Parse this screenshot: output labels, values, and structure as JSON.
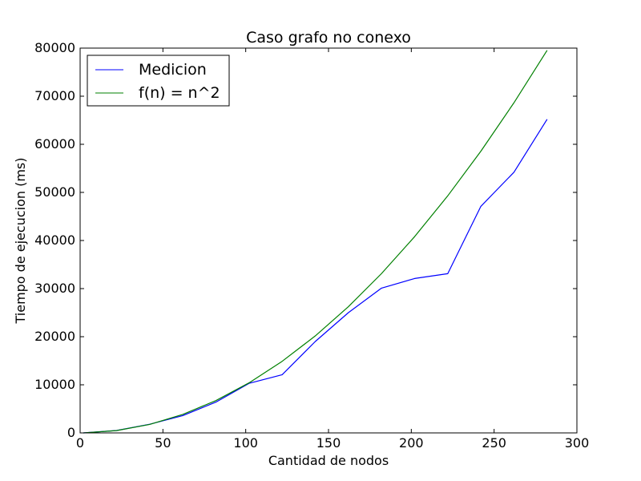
{
  "chart_data": {
    "type": "line",
    "title": "Caso grafo no conexo",
    "xlabel": "Cantidad de nodos",
    "ylabel": "Tiempo de ejecucion (ms)",
    "xlim": [
      0,
      300
    ],
    "ylim": [
      0,
      80000
    ],
    "xticks": [
      "0",
      "50",
      "100",
      "150",
      "200",
      "250",
      "300"
    ],
    "yticks": [
      "0",
      "10000",
      "20000",
      "30000",
      "40000",
      "50000",
      "60000",
      "70000",
      "80000"
    ],
    "grid": false,
    "legend_position": "top-left",
    "series": [
      {
        "name": "Medicion",
        "color": "#0000ff",
        "x": [
          2,
          22,
          42,
          62,
          82,
          102,
          122,
          142,
          162,
          182,
          202,
          222,
          242,
          262,
          282
        ],
        "y": [
          0,
          500,
          1800,
          3600,
          6400,
          10300,
          12100,
          19000,
          25000,
          30100,
          32100,
          33100,
          47100,
          54200,
          65200
        ]
      },
      {
        "name": "f(n) = n^2",
        "color": "#008000",
        "x": [
          2,
          22,
          42,
          62,
          82,
          102,
          122,
          142,
          162,
          182,
          202,
          222,
          242,
          262,
          282
        ],
        "y": [
          4,
          484,
          1764,
          3844,
          6724,
          10404,
          14884,
          20164,
          26244,
          33124,
          40804,
          49284,
          58564,
          68644,
          79524
        ]
      }
    ]
  }
}
